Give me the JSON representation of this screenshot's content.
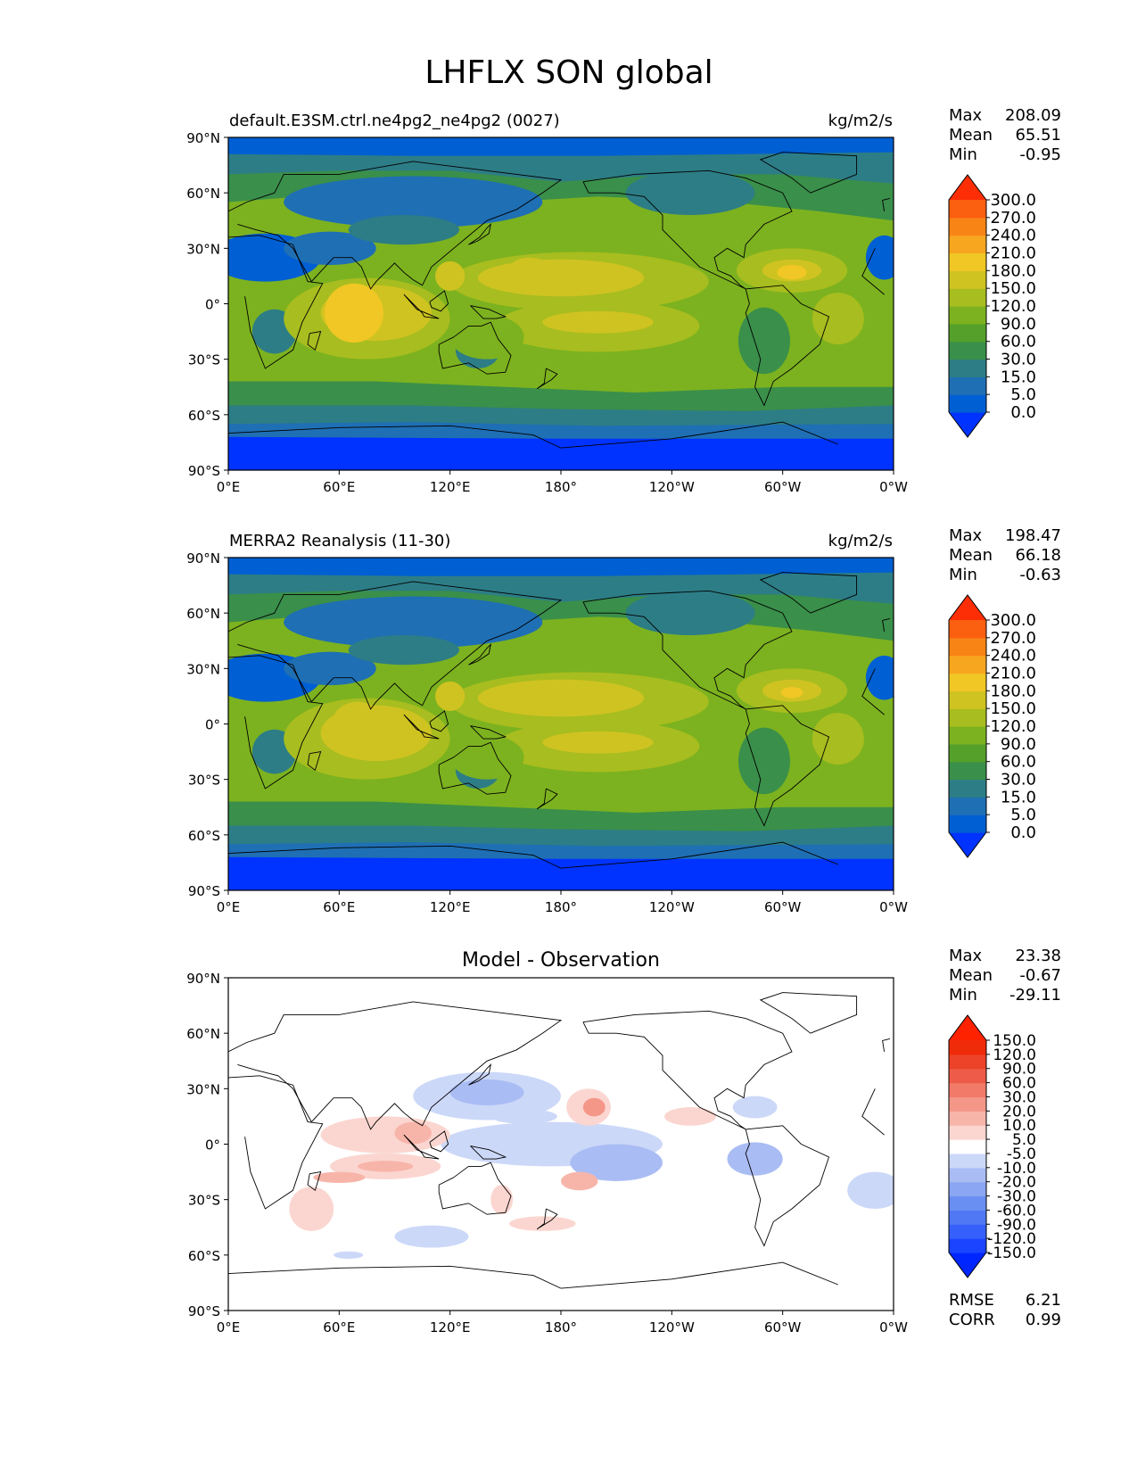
{
  "title": "LHFLX SON global",
  "axes": {
    "lat_ticks": [
      "90°N",
      "60°N",
      "30°N",
      "0°",
      "30°S",
      "60°S",
      "90°S"
    ],
    "lon_ticks": [
      "0°E",
      "60°E",
      "120°E",
      "180°",
      "120°W",
      "60°W",
      "0°W"
    ]
  },
  "stat_labels": {
    "max": "Max",
    "mean": "Mean",
    "min": "Min",
    "rmse": "RMSE",
    "corr": "CORR"
  },
  "chart_data": [
    {
      "type": "heatmap",
      "left_title": "default.E3SM.ctrl.ne4pg2_ne4pg2 (0027)",
      "units": "kg/m2/s",
      "stats": {
        "max": "208.09",
        "mean": "65.51",
        "min": "-0.95"
      },
      "colorbar": {
        "levels": [
          "0.0",
          "5.0",
          "15.0",
          "30.0",
          "60.0",
          "90.0",
          "120.0",
          "150.0",
          "180.0",
          "210.0",
          "240.0",
          "270.0",
          "300.0"
        ],
        "colors": [
          "#0033ff",
          "#005fd3",
          "#1f6fb4",
          "#2d7d86",
          "#3a8f4a",
          "#55a02a",
          "#7cb21f",
          "#a8bd1f",
          "#cfc321",
          "#f0c724",
          "#f7a61f",
          "#f98416",
          "#fb5f10",
          "#fd2e05"
        ]
      }
    },
    {
      "type": "heatmap",
      "left_title": "MERRA2 Reanalysis (11-30)",
      "units": "kg/m2/s",
      "stats": {
        "max": "198.47",
        "mean": "66.18",
        "min": "-0.63"
      },
      "colorbar": {
        "levels": [
          "0.0",
          "5.0",
          "15.0",
          "30.0",
          "60.0",
          "90.0",
          "120.0",
          "150.0",
          "180.0",
          "210.0",
          "240.0",
          "270.0",
          "300.0"
        ],
        "colors": [
          "#0033ff",
          "#005fd3",
          "#1f6fb4",
          "#2d7d86",
          "#3a8f4a",
          "#55a02a",
          "#7cb21f",
          "#a8bd1f",
          "#cfc321",
          "#f0c724",
          "#f7a61f",
          "#f98416",
          "#fb5f10",
          "#fd2e05"
        ]
      }
    },
    {
      "type": "heatmap",
      "center_title": "Model - Observation",
      "stats": {
        "max": "23.38",
        "mean": "-0.67",
        "min": "-29.11",
        "rmse": "6.21",
        "corr": "0.99"
      },
      "colorbar": {
        "levels": [
          "-150.0",
          "-120.0",
          "-90.0",
          "-60.0",
          "-30.0",
          "-20.0",
          "-10.0",
          "-5.0",
          "5.0",
          "10.0",
          "20.0",
          "30.0",
          "60.0",
          "90.0",
          "120.0",
          "150.0"
        ],
        "colors": [
          "#0026ff",
          "#1a44ff",
          "#3560fb",
          "#5078f5",
          "#6a8ff2",
          "#8ba6f2",
          "#aabcf4",
          "#ccd8f8",
          "#ffffff",
          "#fbd6d0",
          "#f7b5aa",
          "#f49788",
          "#f17a68",
          "#ee5b48",
          "#ec4329",
          "#f02b0a",
          "#ff2200"
        ]
      }
    }
  ]
}
